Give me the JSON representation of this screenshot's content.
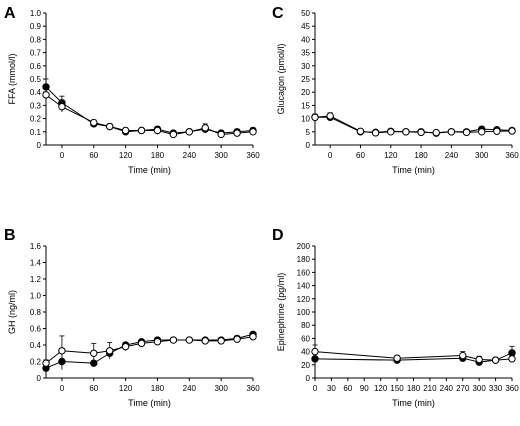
{
  "chart_data": [
    {
      "panel": "A",
      "type": "line",
      "ylabel": "FFA (mmol/l)",
      "xlabel": "Time (min)",
      "xlim": [
        -30,
        360
      ],
      "ylim": [
        0,
        1.0
      ],
      "xticks": [
        0,
        60,
        120,
        180,
        240,
        300,
        360
      ],
      "yticks": [
        "0",
        "0.1",
        "0.2",
        "0.3",
        "0.4",
        "0.5",
        "0.6",
        "0.7",
        "0.8",
        "0.9",
        "1.0"
      ],
      "grid": false,
      "series": [
        {
          "marker": "filled-circle",
          "x": [
            -30,
            0,
            60,
            90,
            120,
            150,
            180,
            210,
            240,
            270,
            300,
            330,
            360
          ],
          "y": [
            0.44,
            0.32,
            0.16,
            0.14,
            0.1,
            0.11,
            0.12,
            0.09,
            0.1,
            0.12,
            0.09,
            0.1,
            0.11
          ],
          "err": [
            0.06,
            0.05,
            0.02,
            0.02,
            0.02,
            0.02,
            0.02,
            0.02,
            0.02,
            0.03,
            0.02,
            0.02,
            0.02
          ]
        },
        {
          "marker": "open-circle",
          "x": [
            -30,
            0,
            60,
            90,
            120,
            150,
            180,
            210,
            240,
            270,
            300,
            330,
            360
          ],
          "y": [
            0.38,
            0.29,
            0.17,
            0.14,
            0.11,
            0.11,
            0.11,
            0.08,
            0.1,
            0.13,
            0.08,
            0.09,
            0.1
          ],
          "err": [
            0.05,
            0.04,
            0.02,
            0.02,
            0.02,
            0.02,
            0.03,
            0.02,
            0.02,
            0.03,
            0.02,
            0.02,
            0.02
          ]
        }
      ]
    },
    {
      "panel": "B",
      "type": "line",
      "ylabel": "GH (ng/ml)",
      "xlabel": "Time (min)",
      "xlim": [
        -30,
        360
      ],
      "ylim": [
        0,
        1.6
      ],
      "xticks": [
        0,
        60,
        120,
        180,
        240,
        300,
        360
      ],
      "yticks": [
        "0",
        "0.2",
        "0.4",
        "0.6",
        "0.8",
        "1.0",
        "1.2",
        "1.4",
        "1.6"
      ],
      "grid": false,
      "series": [
        {
          "marker": "filled-circle",
          "x": [
            -30,
            0,
            60,
            90,
            120,
            150,
            180,
            210,
            240,
            270,
            300,
            330,
            360
          ],
          "y": [
            0.12,
            0.2,
            0.18,
            0.3,
            0.4,
            0.44,
            0.46,
            0.46,
            0.46,
            0.46,
            0.46,
            0.48,
            0.53
          ],
          "err": [
            0.04,
            0.1,
            0.02,
            0.04,
            0.03,
            0.02,
            0.02,
            0.02,
            0.02,
            0.02,
            0.02,
            0.02,
            0.02
          ]
        },
        {
          "marker": "open-circle",
          "x": [
            -30,
            0,
            60,
            90,
            120,
            150,
            180,
            210,
            240,
            270,
            300,
            330,
            360
          ],
          "y": [
            0.18,
            0.33,
            0.3,
            0.33,
            0.38,
            0.42,
            0.44,
            0.46,
            0.46,
            0.45,
            0.45,
            0.47,
            0.5
          ],
          "err": [
            0.04,
            0.18,
            0.12,
            0.1,
            0.05,
            0.03,
            0.02,
            0.02,
            0.02,
            0.02,
            0.02,
            0.02,
            0.02
          ]
        }
      ]
    },
    {
      "panel": "C",
      "type": "line",
      "ylabel": "Glucagon (pmol/l)",
      "xlabel": "Time (min)",
      "xlim": [
        -30,
        360
      ],
      "ylim": [
        0,
        50
      ],
      "xticks": [
        0,
        60,
        120,
        180,
        240,
        300,
        360
      ],
      "yticks": [
        "0",
        "5",
        "10",
        "15",
        "20",
        "25",
        "30",
        "35",
        "40",
        "45",
        "50"
      ],
      "grid": false,
      "series": [
        {
          "marker": "filled-circle",
          "x": [
            -30,
            0,
            60,
            90,
            120,
            150,
            180,
            210,
            240,
            270,
            300,
            330,
            360
          ],
          "y": [
            10.5,
            10.5,
            5.0,
            4.8,
            5.2,
            5.0,
            5.0,
            4.5,
            5.0,
            5.0,
            6.0,
            5.8,
            5.5
          ],
          "err": [
            1.2,
            1.2,
            0.6,
            0.6,
            0.7,
            0.6,
            0.6,
            0.6,
            0.6,
            0.7,
            1.0,
            0.8,
            0.7
          ]
        },
        {
          "marker": "open-circle",
          "x": [
            -30,
            0,
            60,
            90,
            120,
            150,
            180,
            210,
            240,
            270,
            300,
            330,
            360
          ],
          "y": [
            10.5,
            11.0,
            5.2,
            4.6,
            5.0,
            5.0,
            4.8,
            4.7,
            5.0,
            4.8,
            5.0,
            5.2,
            5.3
          ],
          "err": [
            1.2,
            1.2,
            0.6,
            0.6,
            0.7,
            0.6,
            0.6,
            0.6,
            0.6,
            0.6,
            0.7,
            0.7,
            0.7
          ]
        }
      ]
    },
    {
      "panel": "D",
      "type": "line",
      "ylabel": "Epinephrine (pg/ml)",
      "xlabel": "Time (min)",
      "xlim": [
        0,
        360
      ],
      "ylim": [
        0,
        200
      ],
      "xticks": [
        0,
        30,
        60,
        90,
        120,
        150,
        180,
        210,
        240,
        270,
        300,
        330,
        360
      ],
      "yticks": [
        "0",
        "20",
        "40",
        "60",
        "80",
        "100",
        "120",
        "140",
        "160",
        "180",
        "200"
      ],
      "grid": false,
      "series": [
        {
          "marker": "filled-circle",
          "x": [
            0,
            150,
            270,
            300,
            330,
            360
          ],
          "y": [
            29,
            27,
            30,
            24,
            27,
            38
          ],
          "err": [
            8,
            4,
            5,
            4,
            4,
            10
          ]
        },
        {
          "marker": "open-circle",
          "x": [
            0,
            150,
            270,
            300,
            330,
            360
          ],
          "y": [
            40,
            30,
            34,
            28,
            27,
            29
          ],
          "err": [
            10,
            4,
            6,
            5,
            4,
            5
          ]
        }
      ]
    }
  ]
}
